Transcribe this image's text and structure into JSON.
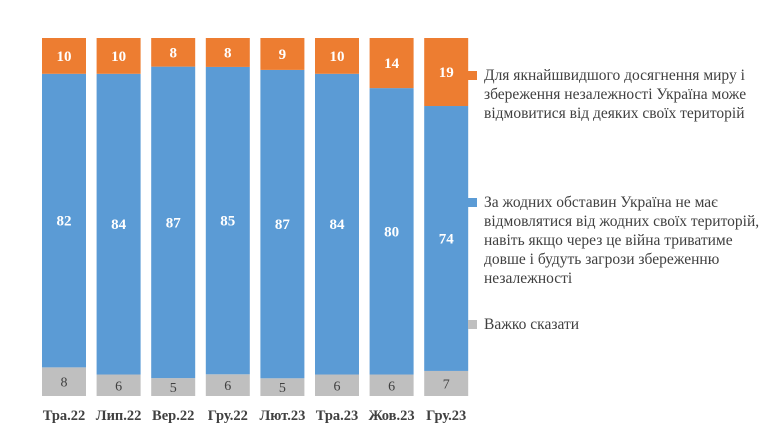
{
  "chart_data": {
    "type": "bar",
    "stacked": true,
    "categories": [
      "Тра.22",
      "Лип.22",
      "Вер.22",
      "Гру.22",
      "Лют.23",
      "Тра.23",
      "Жов.23",
      "Гру.23"
    ],
    "series": [
      {
        "name": "Важко сказати",
        "color": "#bfbfbf",
        "label_color": "#404040",
        "values": [
          8,
          6,
          5,
          6,
          5,
          6,
          6,
          7
        ]
      },
      {
        "name": "За жодних обставин Україна не має відмовлятися від жодних своїх територій, навіть якщо через це війна триватиме довше і будуть загрози збереженню незалежності",
        "color": "#5b9bd5",
        "label_color": "#ffffff",
        "values": [
          82,
          84,
          87,
          85,
          87,
          84,
          80,
          74
        ]
      },
      {
        "name": "Для якнайшвидшого досягнення миру і збереження незалежності Україна може відмовитися від деяких своїх територій",
        "color": "#ed7d31",
        "label_color": "#ffffff",
        "values": [
          10,
          10,
          8,
          8,
          9,
          10,
          14,
          19
        ]
      }
    ],
    "ylim": [
      0,
      100
    ],
    "grid": false,
    "legend_position": "right"
  }
}
